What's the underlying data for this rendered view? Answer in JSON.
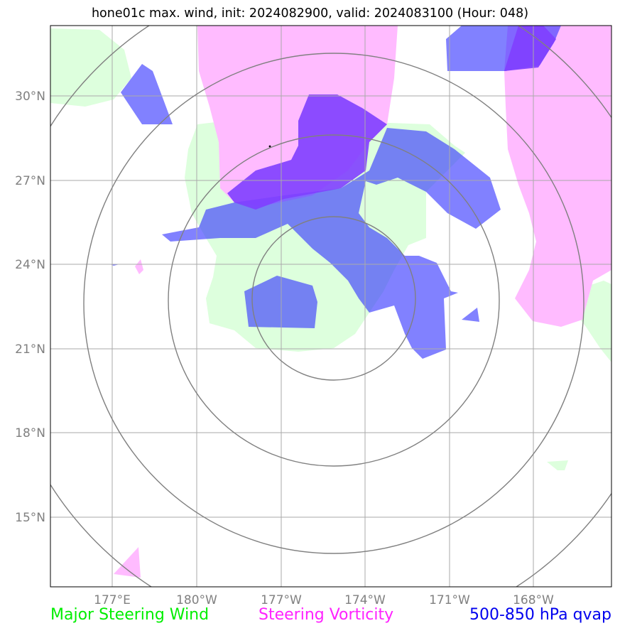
{
  "title": "hone01c max. wind, init: 2024082900, valid: 2024083100 (Hour: 048)",
  "map": {
    "lat_labels": [
      "30°N",
      "27°N",
      "24°N",
      "21°N",
      "18°N",
      "15°N"
    ],
    "lon_labels": [
      "177°E",
      "180°W",
      "177°W",
      "174°W",
      "171°W",
      "168°W"
    ],
    "colors": {
      "steering_wind": "#ddffdd",
      "steering_vorticity": "#ffbbff",
      "qvap_light": "#8080ff",
      "qvap_dark": "#7f3fff",
      "grid": "#aaaaaa",
      "range_rings": "#808080"
    }
  },
  "legend": {
    "wind": "Major Steering Wind",
    "vorticity": "Steering Vorticity",
    "qvap": "500-850 hPa qvap"
  }
}
